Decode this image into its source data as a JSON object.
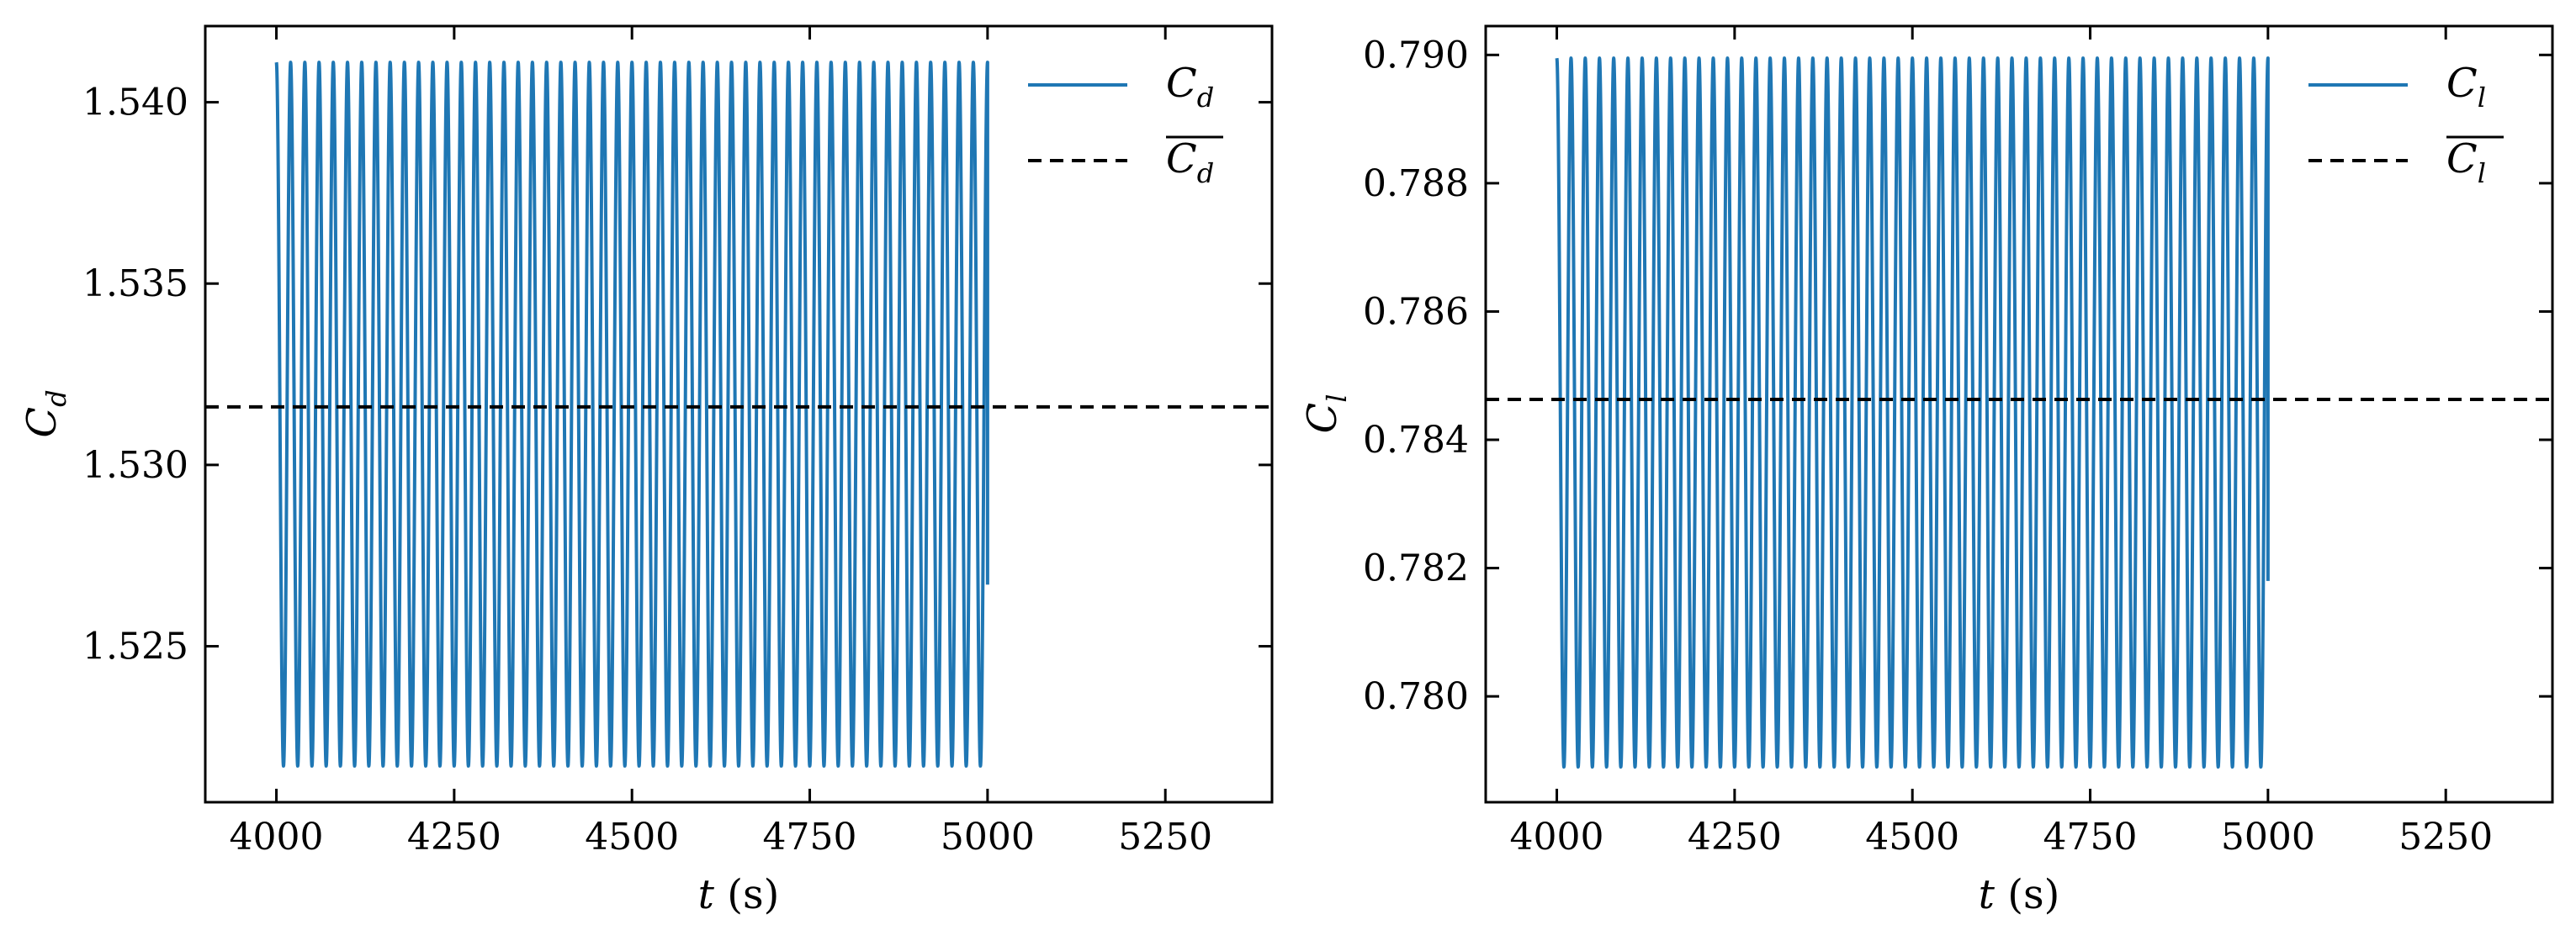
{
  "chart_data": [
    {
      "type": "line",
      "xlabel": "t (s)",
      "ylabel": "C_d",
      "xlim": [
        3900,
        5400
      ],
      "ylim": [
        1.5207,
        1.5421
      ],
      "xticks": [
        "4000",
        "4250",
        "4500",
        "4750",
        "5000",
        "5250"
      ],
      "yticks": [
        "1.525",
        "1.530",
        "1.535",
        "1.540"
      ],
      "series": [
        {
          "name": "C_d",
          "style": "solid",
          "color": "#1f77b4",
          "x_start": 4000,
          "x_end": 5000,
          "period": 20,
          "min": 1.5217,
          "max": 1.5411,
          "start_value": 1.54,
          "end_value": 1.5267
        },
        {
          "name": "mean C_d",
          "style": "dashed",
          "color": "#000000",
          "value": 1.5316
        }
      ],
      "legend": {
        "position": "top-right",
        "entries": [
          {
            "base": "C",
            "sub": "d",
            "bar": false
          },
          {
            "base": "C",
            "sub": "d",
            "bar": true
          }
        ]
      },
      "grid": false
    },
    {
      "type": "line",
      "xlabel": "t (s)",
      "ylabel": "C_l",
      "xlim": [
        3900,
        5400
      ],
      "ylim": [
        0.77835,
        0.79045
      ],
      "xticks": [
        "4000",
        "4250",
        "4500",
        "4750",
        "5000",
        "5250"
      ],
      "yticks": [
        "0.780",
        "0.782",
        "0.784",
        "0.786",
        "0.788",
        "0.790"
      ],
      "series": [
        {
          "name": "C_l",
          "style": "solid",
          "color": "#1f77b4",
          "x_start": 4000,
          "x_end": 5000,
          "period": 20,
          "min": 0.7789,
          "max": 0.78995,
          "start_value": 0.7895,
          "end_value": 0.7818
        },
        {
          "name": "mean C_l",
          "style": "dashed",
          "color": "#000000",
          "value": 0.78463
        }
      ],
      "legend": {
        "position": "top-right",
        "entries": [
          {
            "base": "C",
            "sub": "l",
            "bar": false
          },
          {
            "base": "C",
            "sub": "l",
            "bar": true
          }
        ]
      },
      "grid": false
    }
  ]
}
